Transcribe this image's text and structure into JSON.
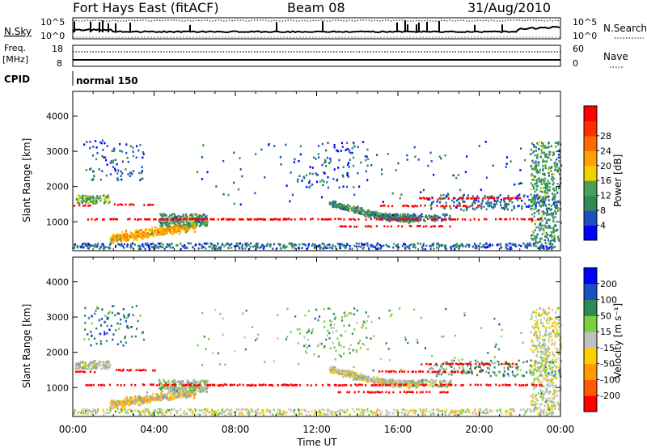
{
  "header": {
    "title": "Fort Hays East (fitACF)",
    "beam": "Beam 08",
    "date": "31/Aug/2010"
  },
  "status_panels": {
    "nsky": {
      "label": "N.Sky",
      "tick_top": "10^5",
      "tick_bottom": "10^0",
      "right_label": "N.Search",
      "right_tick_top": "10^5",
      "right_tick_bottom": "10^0"
    },
    "freq": {
      "label_line1": "Freq.",
      "label_line2": "[MHz]",
      "tick_top": "18",
      "tick_bottom": "8",
      "right_label": "Nave",
      "right_tick_top": "60",
      "right_tick_bottom": "0"
    },
    "cpid": {
      "label": "CPID",
      "value": "normal 150"
    }
  },
  "colors": {
    "power": [
      "#0000ff",
      "#1e4fc0",
      "#2e8b57",
      "#4aa05a",
      "#f0d000",
      "#ffa000",
      "#ff6a00",
      "#ff3000",
      "#ff0000"
    ],
    "velocity": [
      "#ff0000",
      "#ff5a00",
      "#ff9b00",
      "#ffd000",
      "#c0c0c0",
      "#7bd03c",
      "#2e8b57",
      "#1e4fc0",
      "#0000ff"
    ],
    "ground_scatter": "#a0a0a0"
  },
  "chart_data": [
    {
      "type": "heatmap",
      "name": "power",
      "ylabel": "Slant Range [km]",
      "xlabel": "",
      "xlim": [
        0,
        24
      ],
      "ylim": [
        180,
        4700
      ],
      "yticks": [
        "1000",
        "2000",
        "3000",
        "4000"
      ],
      "ytick_values": [
        1000,
        2000,
        3000,
        4000
      ],
      "colorbar_label": "Power [dB]",
      "colorbar_ticks": [
        "4",
        "8",
        "12",
        "16",
        "20",
        "24",
        "28"
      ],
      "colorbar_range": [
        0,
        30
      ]
    },
    {
      "type": "heatmap",
      "name": "velocity",
      "ylabel": "Slant Range [km]",
      "xlabel": "Time UT",
      "xlim": [
        0,
        24
      ],
      "ylim": [
        180,
        4700
      ],
      "xticks": [
        "00:00",
        "04:00",
        "08:00",
        "12:00",
        "16:00",
        "20:00",
        "00:00"
      ],
      "xtick_values": [
        0,
        4,
        8,
        12,
        16,
        20,
        24
      ],
      "yticks": [
        "1000",
        "2000",
        "3000",
        "4000"
      ],
      "ytick_values": [
        1000,
        2000,
        3000,
        4000
      ],
      "colorbar_label": "Velocity [m s⁻¹]",
      "colorbar_ticks": [
        "200",
        "100",
        "50",
        "15",
        "-15",
        "-50",
        "-100",
        "-200"
      ],
      "colorbar_range": [
        -250,
        250
      ]
    }
  ]
}
